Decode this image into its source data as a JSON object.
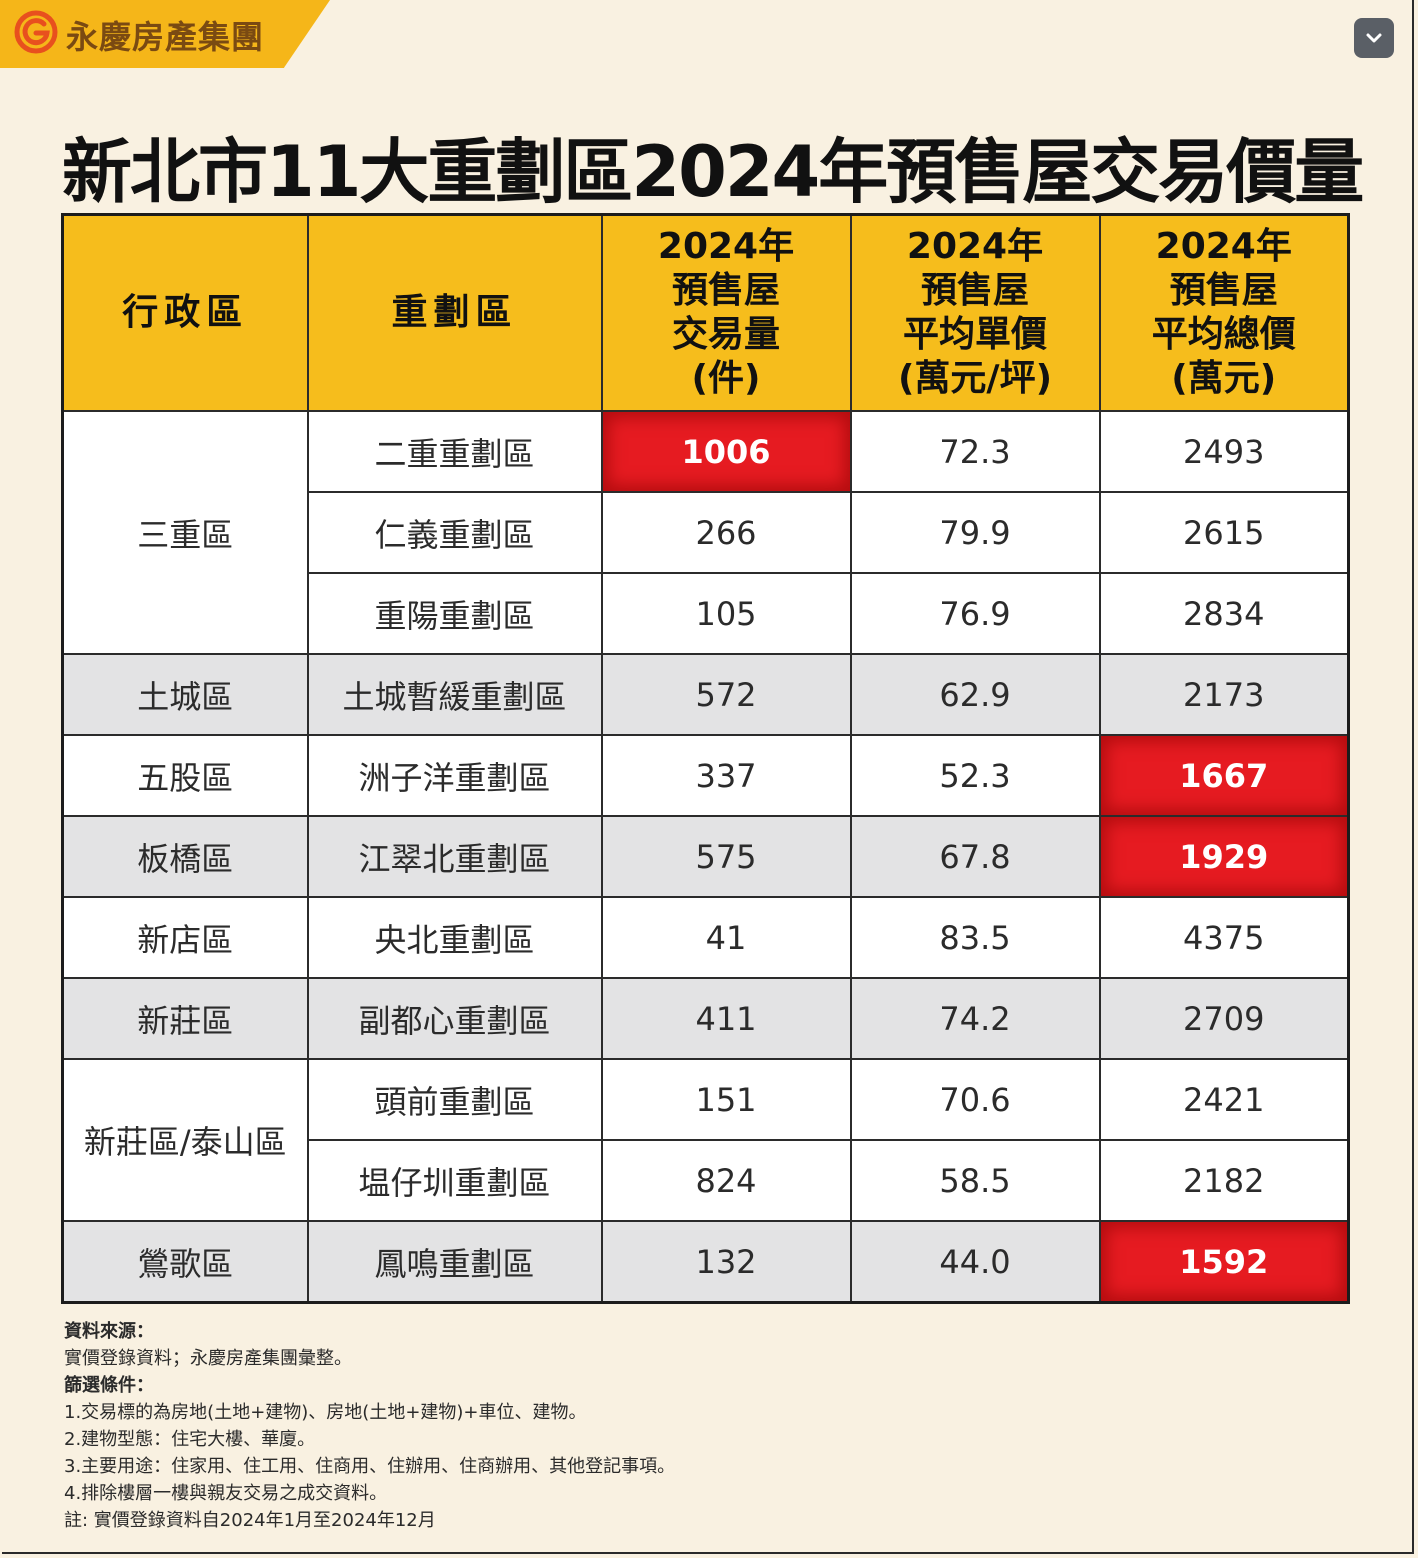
{
  "brand": {
    "name": "永慶房產集團"
  },
  "title": "新北市11大重劃區2024年預售屋交易價量",
  "table": {
    "headers": [
      {
        "lines": [
          "行政區"
        ]
      },
      {
        "lines": [
          "重劃區"
        ]
      },
      {
        "lines": [
          "2024年",
          "預售屋",
          "交易量",
          "(件)"
        ]
      },
      {
        "lines": [
          "2024年",
          "預售屋",
          "平均單價",
          "(萬元/坪)"
        ]
      },
      {
        "lines": [
          "2024年",
          "預售屋",
          "平均總價",
          "(萬元)"
        ]
      }
    ],
    "groups": [
      {
        "district": "三重區"
      },
      {
        "district": "土城區"
      },
      {
        "district": "五股區"
      },
      {
        "district": "板橋區"
      },
      {
        "district": "新店區"
      },
      {
        "district": "新莊區"
      },
      {
        "district": "新莊區/泰山區"
      },
      {
        "district": "鶯歌區"
      }
    ],
    "rows": [
      {
        "zone": "二重重劃區",
        "volume": "1006",
        "unit_price": "72.3",
        "total_price": "2493"
      },
      {
        "zone": "仁義重劃區",
        "volume": "266",
        "unit_price": "79.9",
        "total_price": "2615"
      },
      {
        "zone": "重陽重劃區",
        "volume": "105",
        "unit_price": "76.9",
        "total_price": "2834"
      },
      {
        "zone": "土城暫緩重劃區",
        "volume": "572",
        "unit_price": "62.9",
        "total_price": "2173"
      },
      {
        "zone": "洲子洋重劃區",
        "volume": "337",
        "unit_price": "52.3",
        "total_price": "1667"
      },
      {
        "zone": "江翠北重劃區",
        "volume": "575",
        "unit_price": "67.8",
        "total_price": "1929"
      },
      {
        "zone": "央北重劃區",
        "volume": "41",
        "unit_price": "83.5",
        "total_price": "4375"
      },
      {
        "zone": "副都心重劃區",
        "volume": "411",
        "unit_price": "74.2",
        "total_price": "2709"
      },
      {
        "zone": "頭前重劃區",
        "volume": "151",
        "unit_price": "70.6",
        "total_price": "2421"
      },
      {
        "zone": "塭仔圳重劃區",
        "volume": "824",
        "unit_price": "58.5",
        "total_price": "2182"
      },
      {
        "zone": "鳳鳴重劃區",
        "volume": "132",
        "unit_price": "44.0",
        "total_price": "1592"
      }
    ]
  },
  "notes": {
    "source_heading": "資料來源：",
    "source_text": "實價登錄資料；永慶房產集團彙整。",
    "filter_heading": "篩選條件：",
    "filters": [
      "1.交易標的為房地(土地+建物)、房地(土地+建物)+車位、建物。",
      "2.建物型態：住宅大樓、華廈。",
      "3.主要用途：住家用、住工用、住商用、住辦用、住商辦用、其他登記事項。",
      "4.排除樓層一樓與親友交易之成交資料。"
    ],
    "footnote": "註: 實價登錄資料自2024年1月至2024年12月"
  },
  "colors": {
    "header_bg": "#f6bd1c",
    "highlight": "#e61b21",
    "shaded_row": "#e3e3e4",
    "page_bg": "#f9f1e1"
  },
  "icons": {
    "brand_logo": "yungching-logo-icon",
    "collapse": "chevron-down-icon"
  },
  "chart_data": {
    "type": "table",
    "title": "新北市11大重劃區2024年預售屋交易價量",
    "columns": [
      "行政區",
      "重劃區",
      "2024年預售屋交易量(件)",
      "2024年預售屋平均單價(萬元/坪)",
      "2024年預售屋平均總價(萬元)"
    ],
    "rows": [
      [
        "三重區",
        "二重重劃區",
        1006,
        72.3,
        2493
      ],
      [
        "三重區",
        "仁義重劃區",
        266,
        79.9,
        2615
      ],
      [
        "三重區",
        "重陽重劃區",
        105,
        76.9,
        2834
      ],
      [
        "土城區",
        "土城暫緩重劃區",
        572,
        62.9,
        2173
      ],
      [
        "五股區",
        "洲子洋重劃區",
        337,
        52.3,
        1667
      ],
      [
        "板橋區",
        "江翠北重劃區",
        575,
        67.8,
        1929
      ],
      [
        "新店區",
        "央北重劃區",
        41,
        83.5,
        4375
      ],
      [
        "新莊區",
        "副都心重劃區",
        411,
        74.2,
        2709
      ],
      [
        "新莊區/泰山區",
        "頭前重劃區",
        151,
        70.6,
        2421
      ],
      [
        "新莊區/泰山區",
        "塭仔圳重劃區",
        824,
        58.5,
        2182
      ],
      [
        "鶯歌區",
        "鳳鳴重劃區",
        132,
        44.0,
        1592
      ]
    ],
    "highlighted_cells": [
      {
        "row": "二重重劃區",
        "column": "2024年預售屋交易量(件)",
        "value": 1006
      },
      {
        "row": "洲子洋重劃區",
        "column": "2024年預售屋平均總價(萬元)",
        "value": 1667
      },
      {
        "row": "江翠北重劃區",
        "column": "2024年預售屋平均總價(萬元)",
        "value": 1929
      },
      {
        "row": "鳳鳴重劃區",
        "column": "2024年預售屋平均總價(萬元)",
        "value": 1592
      }
    ]
  }
}
